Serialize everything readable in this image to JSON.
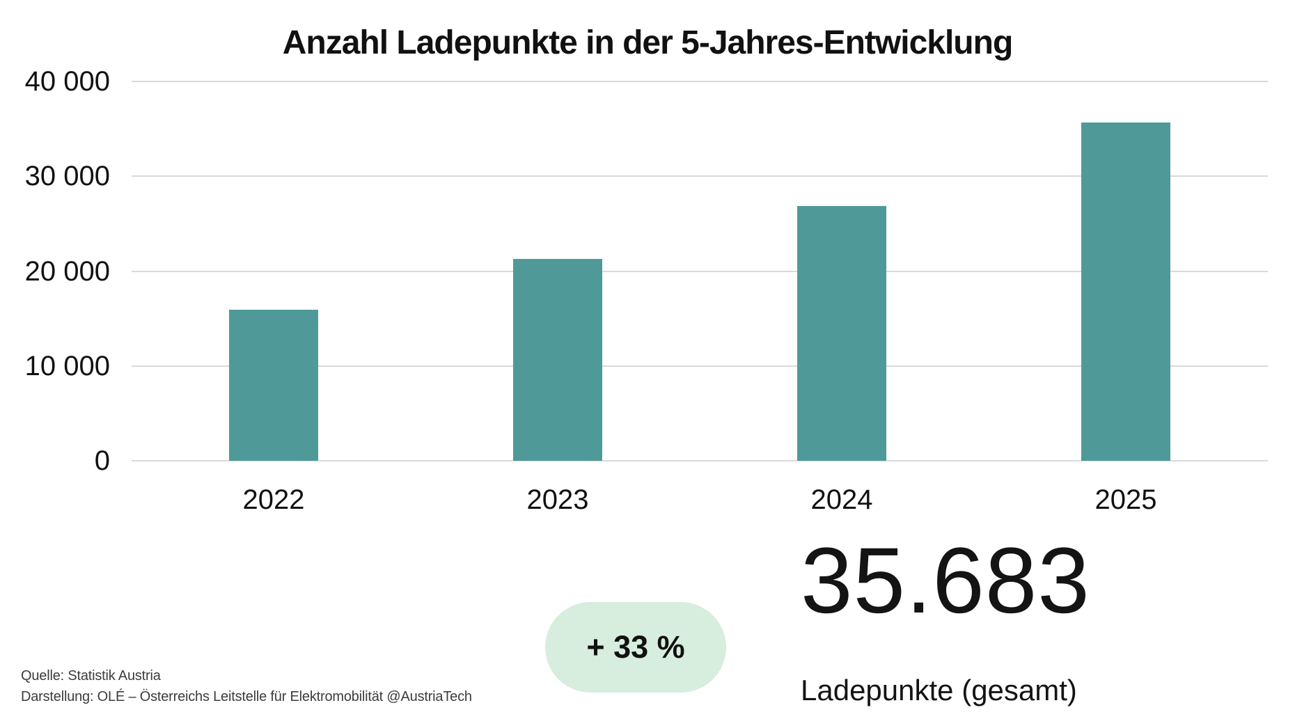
{
  "page": {
    "title": "Anzahl Ladepunkte in der 5-Jahres-Entwicklung"
  },
  "chart_data": {
    "type": "bar",
    "title": "Anzahl Ladepunkte in der 5-Jahres-Entwicklung",
    "categories": [
      "2022",
      "2023",
      "2024",
      "2025"
    ],
    "values": [
      15900,
      21300,
      26830,
      35683
    ],
    "xlabel": "",
    "ylabel": "",
    "ylim": [
      0,
      40000
    ],
    "yticks": [
      0,
      10000,
      20000,
      30000,
      40000
    ],
    "ytick_labels": [
      "0",
      "10 000",
      "20 000",
      "30 000",
      "40 000"
    ],
    "grid": true,
    "legend": "none",
    "bar_color": "#4F9A98",
    "gridline_color": "#D9D9D9"
  },
  "highlight": {
    "growth_badge_label": "+ 33 %",
    "badge_bg": "#D7EDDD",
    "total_value": "35.683",
    "total_label": "Ladepunkte (gesamt)"
  },
  "footer": {
    "source_line1": "Quelle: Statistik Austria",
    "source_line2": "Darstellung: OLÉ – Österreichs Leitstelle für Elektromobilität @AustriaTech"
  }
}
